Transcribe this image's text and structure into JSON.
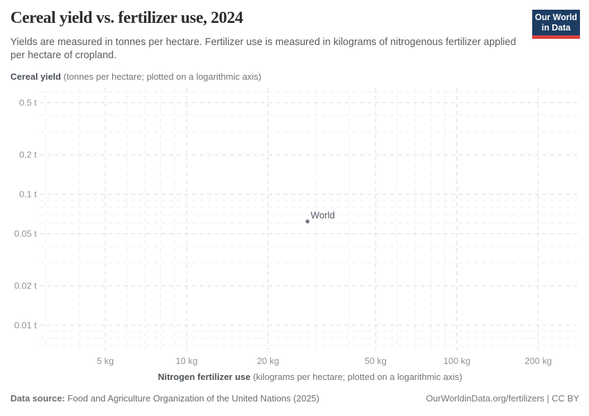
{
  "header": {
    "title": "Cereal yield vs. fertilizer use, 2024",
    "subtitle": "Yields are measured in tonnes per hectare. Fertilizer use is measured in kilograms of nitrogenous fertilizer applied per hectare of cropland.",
    "logo": {
      "line1": "Our World",
      "line2": "in Data",
      "bg_color": "#1d3d63",
      "accent_color": "#dc3f3d"
    }
  },
  "chart_data": {
    "type": "scatter",
    "title": "Cereal yield vs. fertilizer use, 2024",
    "grid": true,
    "x_axis": {
      "label_bold": "Nitrogen fertilizer use",
      "label_rest": " (kilograms per hectare; plotted on a logarithmic axis)",
      "scale": "log",
      "range": [
        2.8,
        300
      ],
      "tick_values": [
        5,
        10,
        20,
        50,
        100,
        200
      ],
      "tick_labels": [
        "5 kg",
        "10 kg",
        "20 kg",
        "50 kg",
        "100 kg",
        "200 kg"
      ],
      "minor_gridlines": [
        3,
        4,
        6,
        7,
        8,
        9,
        30,
        40,
        60,
        70,
        80,
        90
      ]
    },
    "y_axis": {
      "label_bold": "Cereal yield",
      "label_rest": " (tonnes per hectare; plotted on a logarithmic axis)",
      "scale": "log",
      "range": [
        0.0065,
        0.62
      ],
      "tick_values": [
        0.5,
        0.2,
        0.1,
        0.05,
        0.02,
        0.01
      ],
      "tick_labels": [
        "0.5 t",
        "0.2 t",
        "0.1 t",
        "0.05 t",
        "0.02 t",
        "0.01 t"
      ],
      "minor_gridlines": [
        0.6,
        0.4,
        0.3,
        0.09,
        0.08,
        0.07,
        0.06,
        0.04,
        0.03,
        0.009,
        0.008,
        0.007
      ]
    },
    "series": [
      {
        "name": "World",
        "color": "#6f7683",
        "label_color": "#555d68",
        "points": [
          {
            "x": 28,
            "y": 0.062,
            "label": "World"
          }
        ]
      }
    ],
    "grid_colors": {
      "major": "#d8dbde",
      "minor": "#ebedef"
    }
  },
  "footer": {
    "datasource_bold": "Data source:",
    "datasource_rest": " Food and Agriculture Organization of the United Nations (2025)",
    "credit": "OurWorldinData.org/fertilizers | CC BY"
  }
}
